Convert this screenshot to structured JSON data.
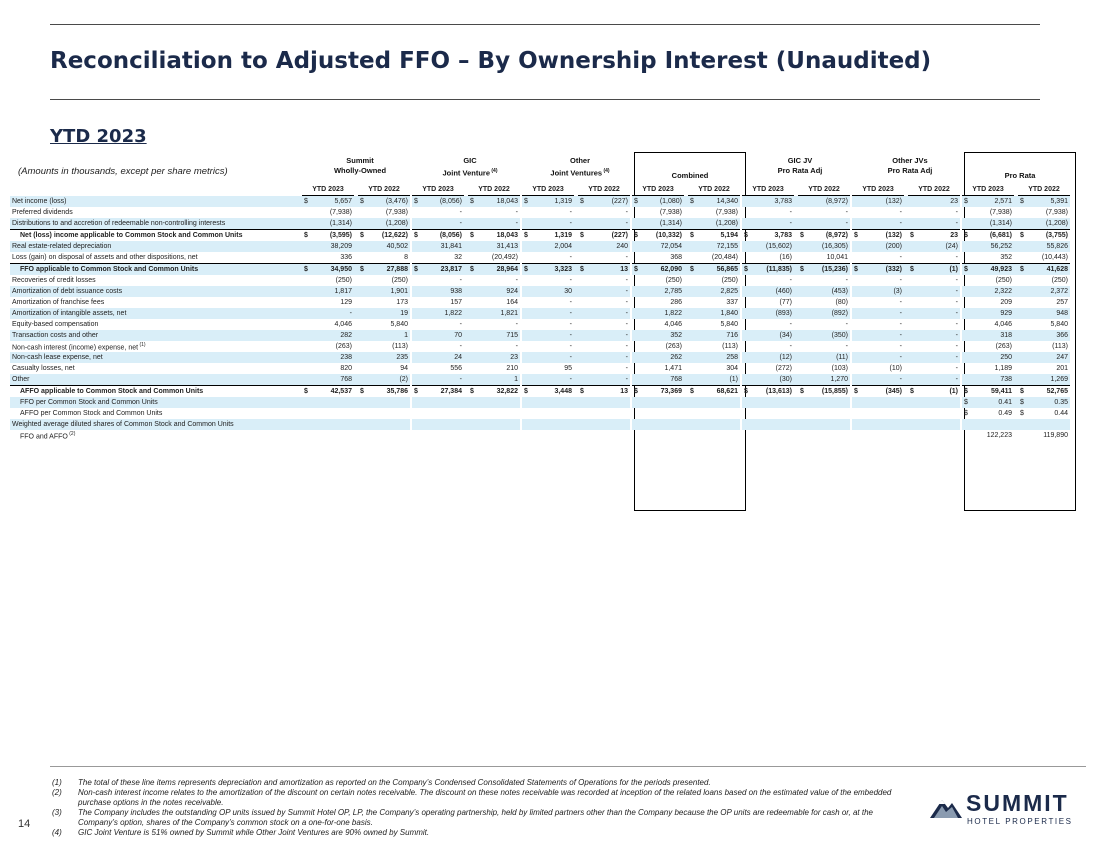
{
  "page": {
    "title": "Reconciliation to Adjusted FFO – By Ownership Interest (Unaudited)",
    "subtitle": "YTD 2023",
    "amounts_note": "(Amounts in thousands, except per share metrics)",
    "page_number": "14"
  },
  "column_groups": [
    {
      "l1": "Summit",
      "l2": "Wholly-Owned",
      "sup": ""
    },
    {
      "l1": "GIC",
      "l2": "Joint Venture",
      "sup": "(4)"
    },
    {
      "l1": "Other",
      "l2": "Joint Ventures",
      "sup": "(4)"
    },
    {
      "l1": "",
      "l2": "Combined",
      "sup": ""
    },
    {
      "l1": "GIC JV",
      "l2": "Pro Rata Adj",
      "sup": ""
    },
    {
      "l1": "Other JVs",
      "l2": "Pro Rata Adj",
      "sup": ""
    },
    {
      "l1": "",
      "l2": "Pro Rata",
      "sup": ""
    }
  ],
  "year_headers": [
    "YTD 2023",
    "YTD 2022"
  ],
  "rows": [
    {
      "label": "Net income (loss)",
      "sup": "",
      "cls": "shade",
      "v": [
        "$|5,657",
        "$|(3,476)",
        "$|(8,056)",
        "$|18,043",
        "$|1,319",
        "$|(227)",
        "$|(1,080)",
        "$|14,340",
        "|3,783",
        "|(8,972)",
        "|(132)",
        "|23",
        "$|2,571",
        "$|5,391"
      ]
    },
    {
      "label": "Preferred dividends",
      "sup": "",
      "cls": "",
      "v": [
        "|(7,938)",
        "|(7,938)",
        "|-",
        "|-",
        "|-",
        "|-",
        "|(7,938)",
        "|(7,938)",
        "|-",
        "|-",
        "|-",
        "|-",
        "|(7,938)",
        "|(7,938)"
      ]
    },
    {
      "label": "Distributions to and accretion of redeemable non-controlling interests",
      "sup": "",
      "cls": "shade",
      "v": [
        "|(1,314)",
        "|(1,208)",
        "|-",
        "|-",
        "|-",
        "|-",
        "|(1,314)",
        "|(1,208)",
        "|-",
        "|-",
        "|-",
        "|-",
        "|(1,314)",
        "|(1,208)"
      ]
    },
    {
      "label": "Net (loss) income applicable to Common Stock and Common Units",
      "sup": "",
      "cls": "bold tot",
      "v": [
        "$|(3,595)",
        "$|(12,622)",
        "$|(8,056)",
        "$|18,043",
        "$|1,319",
        "$|(227)",
        "$|(10,332)",
        "$|5,194",
        "$|3,783",
        "$|(8,972)",
        "$|(132)",
        "$|23",
        "$|(6,681)",
        "$|(3,755)"
      ]
    },
    {
      "label": "Real estate-related depreciation",
      "sup": "",
      "cls": "shade",
      "v": [
        "|38,209",
        "|40,502",
        "|31,841",
        "|31,413",
        "|2,004",
        "|240",
        "|72,054",
        "|72,155",
        "|(15,602)",
        "|(16,305)",
        "|(200)",
        "|(24)",
        "|56,252",
        "|55,826"
      ]
    },
    {
      "label": "Loss (gain) on disposal of assets and other dispositions, net",
      "sup": "",
      "cls": "",
      "v": [
        "|336",
        "|8",
        "|32",
        "|(20,492)",
        "|-",
        "|-",
        "|368",
        "|(20,484)",
        "|(16)",
        "|10,041",
        "|-",
        "|-",
        "|352",
        "|(10,443)"
      ]
    },
    {
      "label": "FFO applicable to Common Stock and Common Units",
      "sup": "",
      "cls": "bold tot shade",
      "v": [
        "$|34,950",
        "$|27,888",
        "$|23,817",
        "$|28,964",
        "$|3,323",
        "$|13",
        "$|62,090",
        "$|56,865",
        "$|(11,835)",
        "$|(15,236)",
        "$|(332)",
        "$|(1)",
        "$|49,923",
        "$|41,628"
      ]
    },
    {
      "label": "Recoveries of credit losses",
      "sup": "",
      "cls": "",
      "v": [
        "|(250)",
        "|(250)",
        "|-",
        "|-",
        "|-",
        "|-",
        "|(250)",
        "|(250)",
        "|-",
        "|-",
        "|-",
        "|-",
        "|(250)",
        "|(250)"
      ]
    },
    {
      "label": "Amortization of debt issuance costs",
      "sup": "",
      "cls": "shade",
      "v": [
        "|1,817",
        "|1,901",
        "|938",
        "|924",
        "|30",
        "|-",
        "|2,785",
        "|2,825",
        "|(460)",
        "|(453)",
        "|(3)",
        "|-",
        "|2,322",
        "|2,372"
      ]
    },
    {
      "label": "Amortization of franchise fees",
      "sup": "",
      "cls": "",
      "v": [
        "|129",
        "|173",
        "|157",
        "|164",
        "|-",
        "|-",
        "|286",
        "|337",
        "|(77)",
        "|(80)",
        "|-",
        "|-",
        "|209",
        "|257"
      ]
    },
    {
      "label": "Amortization of intangible assets, net",
      "sup": "",
      "cls": "shade",
      "v": [
        "|-",
        "|19",
        "|1,822",
        "|1,821",
        "|-",
        "|-",
        "|1,822",
        "|1,840",
        "|(893)",
        "|(892)",
        "|-",
        "|-",
        "|929",
        "|948"
      ]
    },
    {
      "label": "Equity-based compensation",
      "sup": "",
      "cls": "",
      "v": [
        "|4,046",
        "|5,840",
        "|-",
        "|-",
        "|-",
        "|-",
        "|4,046",
        "|5,840",
        "|-",
        "|-",
        "|-",
        "|-",
        "|4,046",
        "|5,840"
      ]
    },
    {
      "label": "Transaction costs and other",
      "sup": "",
      "cls": "shade",
      "v": [
        "|282",
        "|1",
        "|70",
        "|715",
        "|-",
        "|-",
        "|352",
        "|716",
        "|(34)",
        "|(350)",
        "|-",
        "|-",
        "|318",
        "|366"
      ]
    },
    {
      "label": "Non-cash interest (income) expense, net",
      "sup": "(1)",
      "cls": "",
      "v": [
        "|(263)",
        "|(113)",
        "|-",
        "|-",
        "|-",
        "|-",
        "|(263)",
        "|(113)",
        "|-",
        "|-",
        "|-",
        "|-",
        "|(263)",
        "|(113)"
      ]
    },
    {
      "label": "Non-cash lease expense, net",
      "sup": "",
      "cls": "shade",
      "v": [
        "|238",
        "|235",
        "|24",
        "|23",
        "|-",
        "|-",
        "|262",
        "|258",
        "|(12)",
        "|(11)",
        "|-",
        "|-",
        "|250",
        "|247"
      ]
    },
    {
      "label": "Casualty losses, net",
      "sup": "",
      "cls": "",
      "v": [
        "|820",
        "|94",
        "|556",
        "|210",
        "|95",
        "|-",
        "|1,471",
        "|304",
        "|(272)",
        "|(103)",
        "|(10)",
        "|-",
        "|1,189",
        "|201"
      ]
    },
    {
      "label": "Other",
      "sup": "",
      "cls": "shade",
      "v": [
        "|768",
        "|(2)",
        "|-",
        "|1",
        "|-",
        "|-",
        "|768",
        "|(1)",
        "|(30)",
        "|1,270",
        "|-",
        "|-",
        "|738",
        "|1,269"
      ]
    },
    {
      "label": "AFFO applicable to Common Stock and Common Units",
      "sup": "",
      "cls": "bold tot",
      "v": [
        "$|42,537",
        "$|35,786",
        "$|27,384",
        "$|32,822",
        "$|3,448",
        "$|13",
        "$|73,369",
        "$|68,621",
        "$|(13,613)",
        "$|(15,855)",
        "$|(345)",
        "$|(1)",
        "$|59,411",
        "$|52,765"
      ]
    },
    {
      "label": "FFO per Common Stock and Common Units",
      "sup": "",
      "cls": "shade ind",
      "v": [
        "",
        "",
        "",
        "",
        "",
        "",
        "",
        "",
        "",
        "",
        "",
        "",
        "$|0.41",
        "$|0.35"
      ]
    },
    {
      "label": "AFFO per Common Stock and Common Units",
      "sup": "",
      "cls": "ind",
      "v": [
        "",
        "",
        "",
        "",
        "",
        "",
        "",
        "",
        "",
        "",
        "",
        "",
        "$|0.49",
        "$|0.44"
      ]
    },
    {
      "label": "Weighted average diluted shares of Common Stock and Common Units",
      "sup": "",
      "cls": "shade",
      "v": [
        "",
        "",
        "",
        "",
        "",
        "",
        "",
        "",
        "",
        "",
        "",
        "",
        "",
        ""
      ]
    },
    {
      "label": "FFO and AFFO",
      "sup": "(2)",
      "cls": "ind",
      "v": [
        "",
        "",
        "",
        "",
        "",
        "",
        "",
        "",
        "",
        "",
        "",
        "",
        "|122,223",
        "|119,890"
      ]
    }
  ],
  "footnotes": [
    {
      "n": "(1)",
      "text": "The total of these line items represents depreciation and amortization as reported on the Company’s Condensed Consolidated Statements of Operations for the periods presented."
    },
    {
      "n": "(2)",
      "text": "Non-cash interest income relates to the amortization of the discount on certain notes receivable. The discount on these notes receivable was recorded at inception of the related loans based on the estimated value of the embedded purchase options in the notes receivable."
    },
    {
      "n": "(3)",
      "text": "The Company includes the outstanding OP units issued by Summit Hotel OP, LP, the Company’s operating partnership, held by limited partners other than the Company because the OP units are redeemable for cash or, at the Company’s option, shares of the Company’s common stock on a one-for-one basis."
    },
    {
      "n": "(4)",
      "text": "GIC Joint Venture is 51% owned by Summit while Other Joint Ventures are 90% owned by Summit."
    }
  ],
  "logo": {
    "word": "SUMMIT",
    "sub": "HOTEL PROPERTIES",
    "colors": {
      "navy": "#1b2a4a",
      "grey": "#8a9bb0"
    }
  }
}
